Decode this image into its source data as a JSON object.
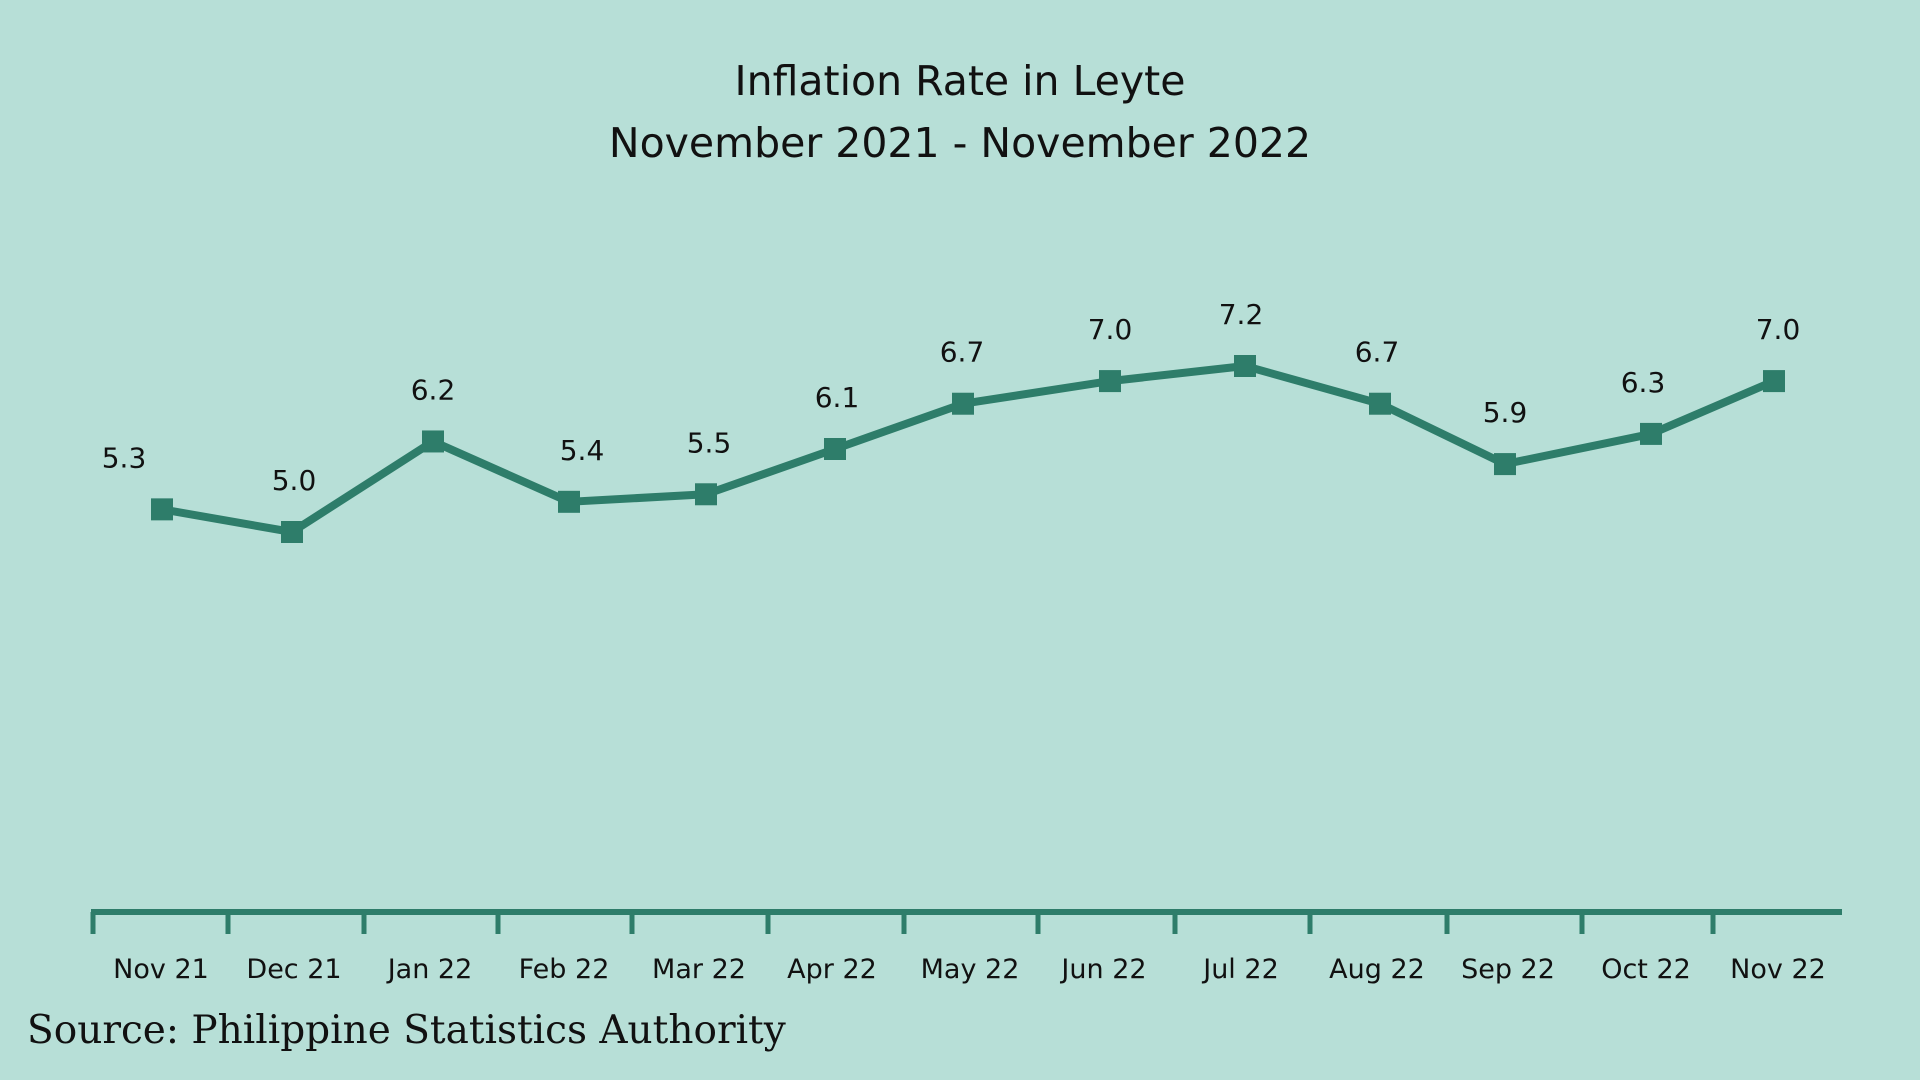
{
  "chart_data": {
    "type": "line",
    "title": "Inflation Rate in Leyte",
    "subtitle": "November 2021 - November 2022",
    "categories": [
      "Nov 21",
      "Dec 21",
      "Jan 22",
      "Feb 22",
      "Mar 22",
      "Apr 22",
      "May 22",
      "Jun 22",
      "Jul 22",
      "Aug 22",
      "Sep 22",
      "Oct 22",
      "Nov 22"
    ],
    "series": [
      {
        "values": [
          5.3,
          5.0,
          6.2,
          5.4,
          5.5,
          6.1,
          6.7,
          7.0,
          7.2,
          6.7,
          5.9,
          6.3,
          7.0
        ],
        "labels": [
          "5.3",
          "5.0",
          "6.2",
          "5.4",
          "5.5",
          "6.1",
          "6.7",
          "7.0",
          "7.2",
          "6.7",
          "5.9",
          "6.3",
          "7.0"
        ],
        "color": "#2e7d6a"
      }
    ],
    "xlabel": "",
    "ylabel": "",
    "y_axis_visible": false,
    "grid": false,
    "legend": "none"
  },
  "source": "Source: Philippine Statistics Authority",
  "colors": {
    "background": "#b7dfd7",
    "line": "#2e7d6a",
    "text": "#111111"
  }
}
